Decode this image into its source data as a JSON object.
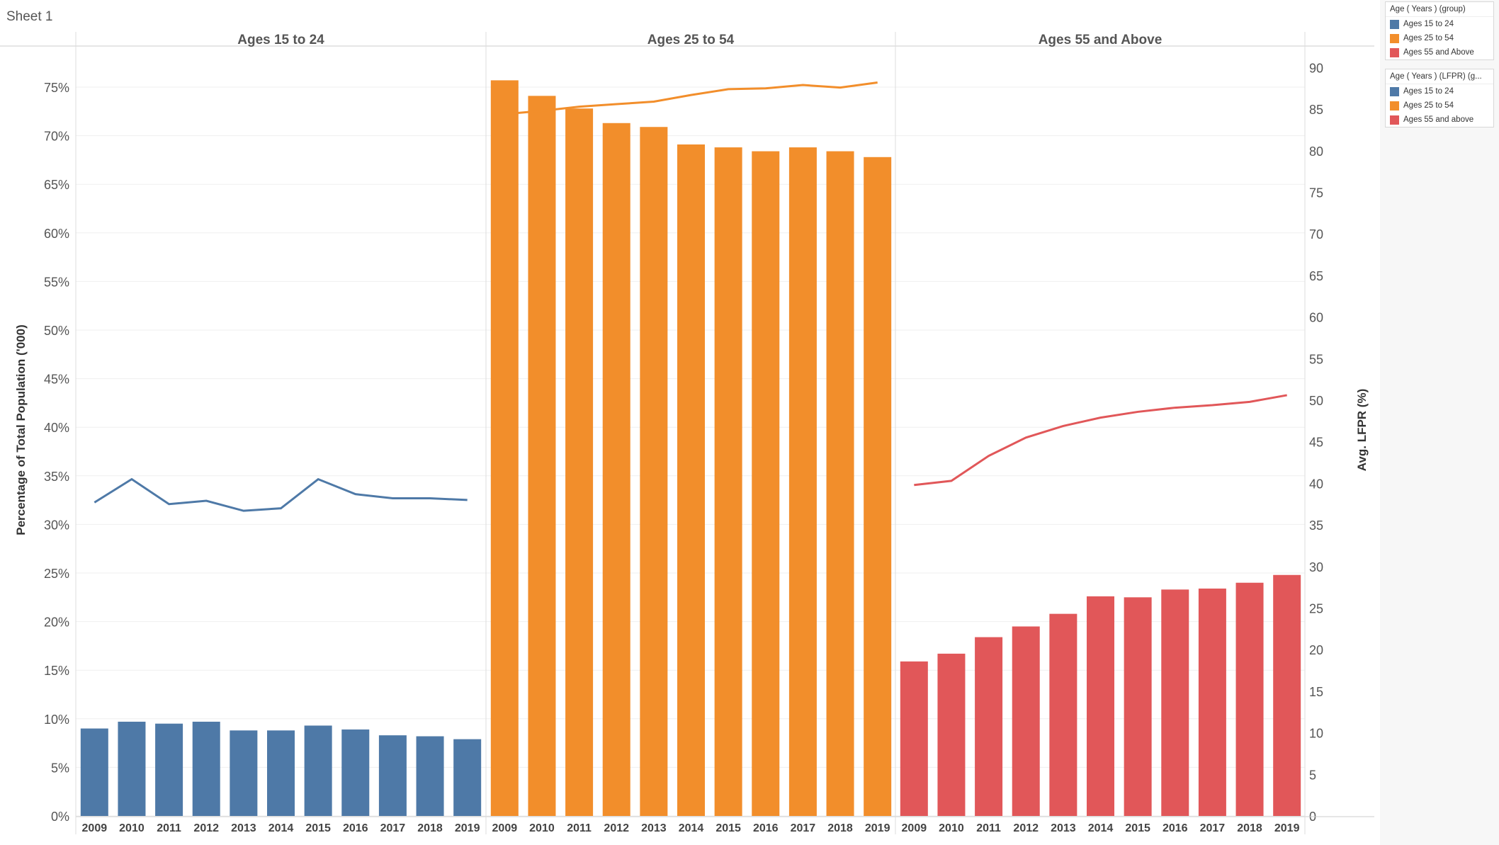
{
  "sheet_title": "Sheet 1",
  "legends": [
    {
      "title": "Age ( Years ) (group)",
      "items": [
        {
          "label": "Ages 15 to 24",
          "color": "#4e79a7"
        },
        {
          "label": "Ages 25 to 54",
          "color": "#f28e2b"
        },
        {
          "label": "Ages 55 and Above",
          "color": "#e15759"
        }
      ]
    },
    {
      "title": "Age ( Years ) (LFPR) (g...",
      "items": [
        {
          "label": "Ages 15 to 24",
          "color": "#4e79a7"
        },
        {
          "label": "Ages 25 to 54",
          "color": "#f28e2b"
        },
        {
          "label": "Ages 55 and above",
          "color": "#e15759"
        }
      ]
    }
  ],
  "chart_data": {
    "type": "bar",
    "combo": "bars on left axis, lines on right axis, faceted by age group",
    "ylabel": "Percentage of Total Population ('000)",
    "ylabel_right": "Avg. LFPR (%)",
    "ylim": [
      0,
      75
    ],
    "ylim_right": [
      0,
      90
    ],
    "yticks": [
      "0%",
      "5%",
      "10%",
      "15%",
      "20%",
      "25%",
      "30%",
      "35%",
      "40%",
      "45%",
      "50%",
      "55%",
      "60%",
      "65%",
      "70%",
      "75%"
    ],
    "yticks_right": [
      "0",
      "5",
      "10",
      "15",
      "20",
      "25",
      "30",
      "35",
      "40",
      "45",
      "50",
      "55",
      "60",
      "65",
      "70",
      "75",
      "80",
      "85",
      "90"
    ],
    "categories": [
      "2009",
      "2010",
      "2011",
      "2012",
      "2013",
      "2014",
      "2015",
      "2016",
      "2017",
      "2018",
      "2019"
    ],
    "grid": true,
    "panels": [
      {
        "name": "Ages 15 to 24",
        "color": "#4e79a7",
        "bars": [
          9.0,
          9.7,
          9.5,
          9.7,
          8.8,
          8.8,
          9.3,
          8.9,
          8.3,
          8.2,
          7.9
        ],
        "line": [
          37.7,
          40.5,
          37.5,
          37.9,
          36.7,
          37.0,
          40.5,
          38.7,
          38.2,
          38.2,
          38.0
        ]
      },
      {
        "name": "Ages 25 to 54",
        "color": "#f28e2b",
        "bars": [
          75.7,
          74.1,
          72.8,
          71.3,
          70.9,
          69.1,
          68.8,
          68.4,
          68.8,
          68.4,
          67.8
        ],
        "line": [
          84.4,
          84.8,
          85.3,
          85.6,
          85.9,
          86.7,
          87.4,
          87.5,
          87.9,
          87.6,
          88.2
        ]
      },
      {
        "name": "Ages 55 and Above",
        "color": "#e15759",
        "bars": [
          15.9,
          16.7,
          18.4,
          19.5,
          20.8,
          22.6,
          22.5,
          23.3,
          23.4,
          24.0,
          24.8
        ],
        "line": [
          39.8,
          40.3,
          43.3,
          45.5,
          46.9,
          47.9,
          48.6,
          49.1,
          49.4,
          49.8,
          50.6
        ]
      }
    ]
  }
}
